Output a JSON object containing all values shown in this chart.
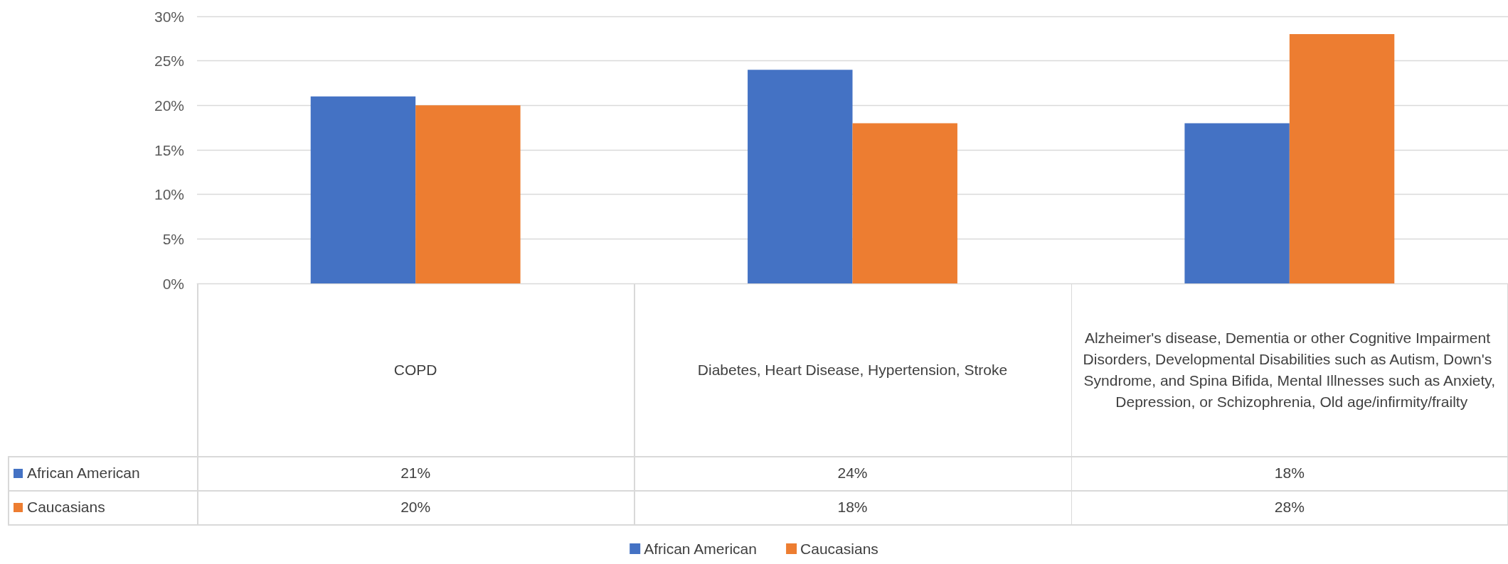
{
  "chart_data": {
    "type": "bar",
    "categories": [
      "COPD",
      "Diabetes, Heart Disease, Hypertension, Stroke",
      "Alzheimer's disease, Dementia or other Cognitive Impairment Disorders, Developmental Disabilities such as Autism, Down's Syndrome, and Spina Bifida, Mental Illnesses such as Anxiety, Depression, or Schizophrenia, Old age/infirmity/frailty"
    ],
    "series": [
      {
        "name": "African American",
        "color": "#4472c4",
        "values": [
          21,
          24,
          18
        ],
        "value_labels": [
          "21%",
          "24%",
          "18%"
        ]
      },
      {
        "name": "Caucasians",
        "color": "#ed7d31",
        "values": [
          20,
          18,
          28
        ],
        "value_labels": [
          "20%",
          "18%",
          "28%"
        ]
      }
    ],
    "ylim": [
      0,
      30
    ],
    "yticks": [
      {
        "value": 0,
        "label": "0%"
      },
      {
        "value": 5,
        "label": "5%"
      },
      {
        "value": 10,
        "label": "10%"
      },
      {
        "value": 15,
        "label": "15%"
      },
      {
        "value": 20,
        "label": "20%"
      },
      {
        "value": 25,
        "label": "25%"
      },
      {
        "value": 30,
        "label": "30%"
      }
    ],
    "grid": "y",
    "legend": "bottom"
  }
}
